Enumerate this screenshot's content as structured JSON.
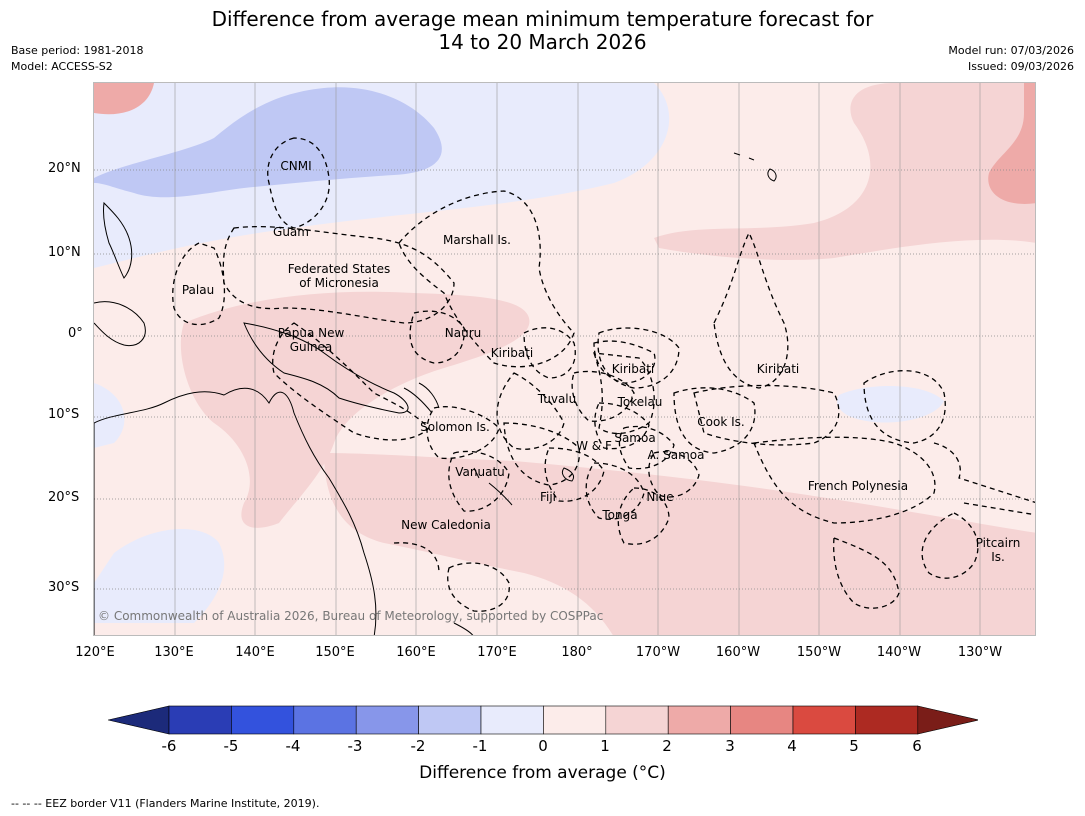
{
  "title": {
    "line1": "Difference from average mean minimum temperature forecast for",
    "line2": "14 to 20 March 2026"
  },
  "meta": {
    "base_period": "Base period: 1981-2018",
    "model": "Model: ACCESS-S2",
    "model_run": "Model run: 07/03/2026",
    "issued": "Issued: 09/03/2026"
  },
  "lat_labels": [
    "20°N",
    "10°N",
    "0°",
    "10°S",
    "20°S",
    "30°S"
  ],
  "lon_labels": [
    "120°E",
    "130°E",
    "140°E",
    "150°E",
    "160°E",
    "170°E",
    "180°",
    "170°W",
    "160°W",
    "150°W",
    "140°W",
    "130°W"
  ],
  "places": [
    {
      "name": "CNMI"
    },
    {
      "name": "Guam"
    },
    {
      "name": "Marshall Is."
    },
    {
      "name": "Federated States\nof Micronesia"
    },
    {
      "name": "Palau"
    },
    {
      "name": "Papua New\nGuinea"
    },
    {
      "name": "Nauru"
    },
    {
      "name": "Kiribati"
    },
    {
      "name": "Kiribati"
    },
    {
      "name": "Kiribati"
    },
    {
      "name": "Tuvalu"
    },
    {
      "name": "Tokelau"
    },
    {
      "name": "Solomon Is."
    },
    {
      "name": "W & F"
    },
    {
      "name": "Samoa"
    },
    {
      "name": "A. Samoa"
    },
    {
      "name": "Cook Is."
    },
    {
      "name": "Vanuatu"
    },
    {
      "name": "Fiji"
    },
    {
      "name": "Niue"
    },
    {
      "name": "Tonga"
    },
    {
      "name": "French Polynesia"
    },
    {
      "name": "New Caledonia"
    },
    {
      "name": "Pitcairn\nIs."
    }
  ],
  "copyright": "© Commonwealth of Australia 2026, Bureau of Meteorology, supported by COSPPac",
  "colorbar": {
    "ticks": [
      "-6",
      "-5",
      "-4",
      "-3",
      "-2",
      "-1",
      "0",
      "1",
      "2",
      "3",
      "4",
      "5",
      "6"
    ],
    "colors": [
      "#1c2a7a",
      "#2a3db5",
      "#3352dd",
      "#5b73e3",
      "#8796ea",
      "#bfc8f4",
      "#e8ebfc",
      "#fcecea",
      "#f5d4d4",
      "#eeaaa8",
      "#e78682",
      "#da4a40",
      "#ad2a22",
      "#7a1d18"
    ],
    "label": "Difference from average (°C)"
  },
  "footnote": "--  --  -- EEZ border V11 (Flanders Marine Institute, 2019)."
}
